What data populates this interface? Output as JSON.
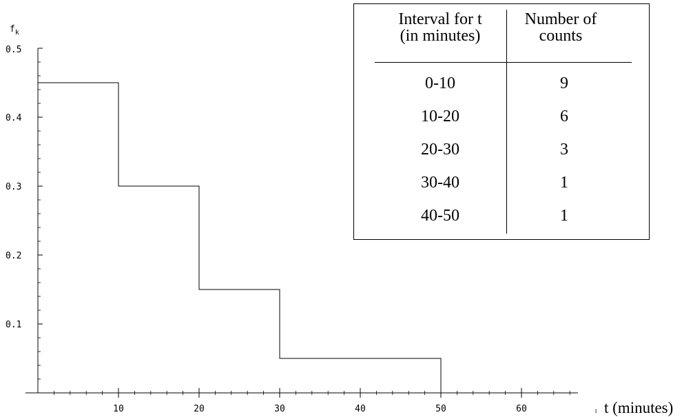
{
  "chart_data": {
    "type": "histogram",
    "ylabel_main": "f",
    "ylabel_sub": "k",
    "xlabel": "t (minutes)",
    "xlim": [
      0,
      67
    ],
    "ylim": [
      0,
      0.5
    ],
    "x_ticks": [
      10,
      20,
      30,
      40,
      50,
      60
    ],
    "y_ticks": [
      0.1,
      0.2,
      0.3,
      0.4
    ],
    "y_tick_labels": [
      "0.1",
      "0.2",
      "0.3",
      "0.4"
    ],
    "y_max_label": "0.5",
    "x_axis_end_marker": "t",
    "bins": [
      {
        "from": 0,
        "to": 10,
        "value": 0.45
      },
      {
        "from": 10,
        "to": 20,
        "value": 0.3
      },
      {
        "from": 20,
        "to": 30,
        "value": 0.15
      },
      {
        "from": 30,
        "to": 50,
        "value": 0.05
      }
    ],
    "table": {
      "header_col1_line1": "Interval for t",
      "header_col1_line2": "(in minutes)",
      "header_col2_line1": "Number of",
      "header_col2_line2": "counts",
      "rows": [
        {
          "interval": "0-10",
          "count": "9"
        },
        {
          "interval": "10-20",
          "count": "6"
        },
        {
          "interval": "20-30",
          "count": "3"
        },
        {
          "interval": "30-40",
          "count": "1"
        },
        {
          "interval": "40-50",
          "count": "1"
        }
      ]
    }
  }
}
